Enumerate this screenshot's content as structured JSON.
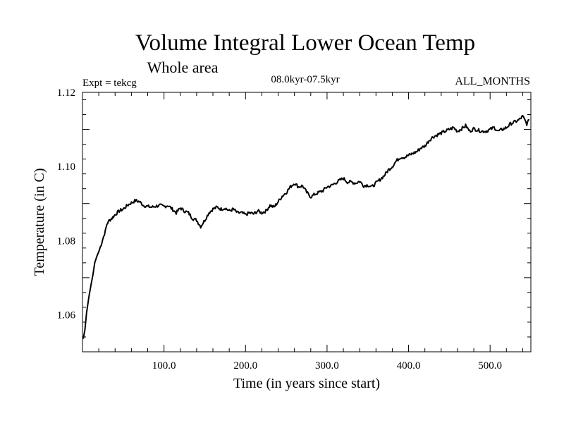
{
  "chart_data": {
    "type": "line",
    "title": "Volume Integral Lower Ocean Temp",
    "subtitle": "Whole area",
    "experiment": "Expt = tekcg",
    "period": "08.0kyr-07.5kyr",
    "months": "ALL_MONTHS",
    "xlabel": "Time (in years since start)",
    "ylabel": "Temperature (in C)",
    "xlim": [
      0,
      550
    ],
    "ylim": [
      1.05,
      1.12
    ],
    "x_ticks": [
      {
        "value": 100,
        "label": "100.0"
      },
      {
        "value": 200,
        "label": "200.0"
      },
      {
        "value": 300,
        "label": "300.0"
      },
      {
        "value": 400,
        "label": "400.0"
      },
      {
        "value": 500,
        "label": "500.0"
      }
    ],
    "y_ticks": [
      {
        "value": 1.06,
        "label": "1.06"
      },
      {
        "value": 1.08,
        "label": "1.08"
      },
      {
        "value": 1.1,
        "label": "1.10"
      },
      {
        "value": 1.12,
        "label": "1.12"
      }
    ],
    "series": [
      {
        "name": "Volume integral lower ocean temperature",
        "x": [
          1,
          3,
          5,
          8,
          10,
          13,
          15,
          18,
          20,
          23,
          25,
          28,
          30,
          33,
          36,
          40,
          45,
          50,
          55,
          60,
          65,
          70,
          75,
          80,
          85,
          90,
          95,
          100,
          105,
          110,
          115,
          120,
          125,
          130,
          135,
          140,
          145,
          150,
          155,
          160,
          165,
          170,
          175,
          180,
          185,
          190,
          195,
          200,
          205,
          210,
          215,
          220,
          225,
          230,
          235,
          240,
          245,
          250,
          255,
          260,
          265,
          270,
          275,
          280,
          285,
          290,
          295,
          300,
          305,
          310,
          315,
          320,
          325,
          330,
          335,
          340,
          345,
          350,
          355,
          360,
          365,
          370,
          375,
          380,
          385,
          390,
          395,
          400,
          405,
          410,
          415,
          420,
          425,
          430,
          435,
          440,
          445,
          450,
          455,
          460,
          465,
          470,
          475,
          480,
          485,
          490,
          495,
          500,
          505,
          510,
          515,
          520,
          525,
          530,
          535,
          540,
          545,
          548
        ],
        "values": [
          1.0535,
          1.056,
          1.0605,
          1.065,
          1.0675,
          1.071,
          1.074,
          1.076,
          1.077,
          1.079,
          1.0805,
          1.0825,
          1.0845,
          1.0855,
          1.086,
          1.087,
          1.088,
          1.0885,
          1.0895,
          1.0902,
          1.0908,
          1.0905,
          1.0895,
          1.0892,
          1.089,
          1.0893,
          1.0895,
          1.0892,
          1.0895,
          1.0885,
          1.0875,
          1.0888,
          1.088,
          1.0875,
          1.086,
          1.0855,
          1.0838,
          1.0855,
          1.0875,
          1.0885,
          1.089,
          1.0885,
          1.0888,
          1.088,
          1.0885,
          1.0875,
          1.0875,
          1.087,
          1.0875,
          1.0872,
          1.088,
          1.0875,
          1.088,
          1.0895,
          1.089,
          1.0905,
          1.092,
          1.093,
          1.0945,
          1.0955,
          1.0945,
          1.0948,
          1.093,
          1.0918,
          1.0925,
          1.093,
          1.0935,
          1.0945,
          1.0948,
          1.0955,
          1.0962,
          1.0968,
          1.0958,
          1.0958,
          1.0955,
          1.096,
          1.0948,
          1.095,
          1.0945,
          1.0955,
          1.0965,
          1.0975,
          1.099,
          1.1,
          1.1015,
          1.1025,
          1.1025,
          1.103,
          1.1035,
          1.104,
          1.105,
          1.1055,
          1.107,
          1.108,
          1.1085,
          1.109,
          1.1095,
          1.11,
          1.1105,
          1.1095,
          1.1102,
          1.111,
          1.1095,
          1.1102,
          1.1098,
          1.1095,
          1.1095,
          1.11,
          1.1105,
          1.1095,
          1.11,
          1.1105,
          1.1115,
          1.112,
          1.1125,
          1.1135,
          1.1115,
          1.1125
        ]
      }
    ]
  }
}
